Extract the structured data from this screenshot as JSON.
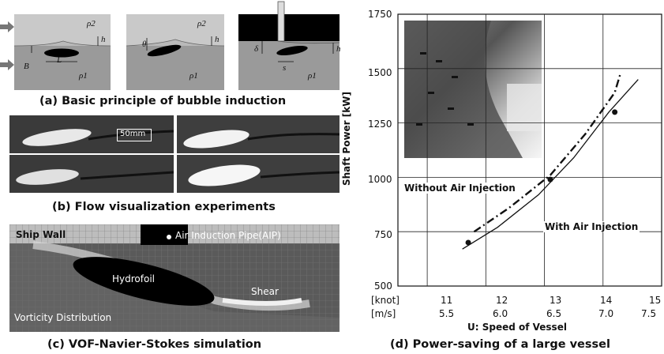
{
  "panel_a": {
    "caption": "(a) Basic principle of bubble induction",
    "sub1": {
      "rho2": "ρ2",
      "rho1": "ρ1",
      "h": "h",
      "B": "B",
      "L": "L"
    },
    "sub2": {
      "rho2": "ρ2",
      "rho1": "ρ1",
      "h": "h",
      "theta": "θ"
    },
    "sub3": {
      "rho2": "ρ2",
      "rho1": "ρ1",
      "delta": "δ",
      "s": "s",
      "h": "h"
    }
  },
  "panel_b": {
    "caption": "(b) Flow visualization experiments",
    "scale_label": "50mm"
  },
  "panel_c": {
    "caption": "(c) VOF-Navier-Stokes simulation",
    "ship_wall": "Ship Wall",
    "aip": "Air Induction Pipe(AIP)",
    "hydrofoil": "Hydrofoil",
    "shear": "Shear",
    "vorticity": "Vorticity Distribution"
  },
  "panel_d": {
    "caption": "(d) Power-saving of a large vessel",
    "xlabel": "U: Speed of Vessel",
    "ylabel": "Shaft Power [kW]",
    "knot_unit": "[knot]",
    "ms_unit": "[m/s]",
    "knot_ticks": [
      "11",
      "12",
      "13",
      "14",
      "15"
    ],
    "ms_ticks": [
      "5.5",
      "6.0",
      "6.5",
      "7.0",
      "7.5"
    ],
    "y_ticks": [
      "500",
      "750",
      "1000",
      "1250",
      "1500",
      "1750"
    ],
    "label_without": "Without Air Injection",
    "label_with": "With Air Injection"
  },
  "chart_data": {
    "type": "line",
    "xlabel": "U: Speed of Vessel",
    "ylabel": "Shaft Power [kW]",
    "x_unit": "knot",
    "xlim": [
      10.5,
      15
    ],
    "ylim": [
      500,
      1750
    ],
    "grid": true,
    "series": [
      {
        "name": "Without Air Injection",
        "style": "dash-dot",
        "x": [
          11.8,
          12.4,
          13.1,
          13.7,
          14.2,
          14.3
        ],
        "y": [
          750,
          860,
          1010,
          1200,
          1390,
          1480
        ]
      },
      {
        "name": "With Air Injection",
        "style": "solid",
        "x": [
          11.6,
          12.2,
          12.9,
          13.5,
          14.1,
          14.6
        ],
        "y": [
          670,
          770,
          920,
          1090,
          1300,
          1450
        ]
      }
    ],
    "markers": [
      {
        "x": 11.7,
        "y": 700
      },
      {
        "x": 13.1,
        "y": 990
      },
      {
        "x": 14.2,
        "y": 1300
      }
    ]
  }
}
